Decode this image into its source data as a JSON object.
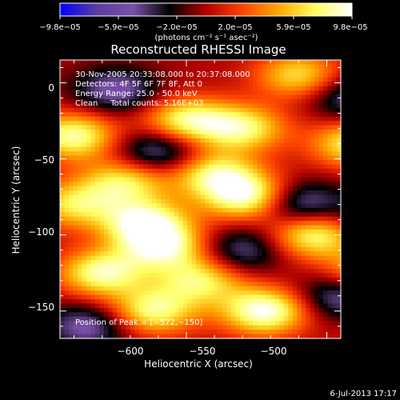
{
  "chart_data": {
    "type": "heatmap",
    "title": "Reconstructed RHESSI Image",
    "xlabel": "Heliocentric X (arcsec)",
    "ylabel": "Heliocentric Y (arcsec)",
    "xlim": [
      -645,
      -545
    ],
    "ylim": [
      -168,
      15
    ],
    "xticks": [
      -600,
      -550,
      -500
    ],
    "yticks": [
      0,
      -50,
      -100,
      -150
    ],
    "x_tick_labels": [
      "−600",
      "−550",
      "−500"
    ],
    "y_tick_labels": [
      "0",
      "−50",
      "−100",
      "−150"
    ],
    "info_lines": [
      "30-Nov-2005 20:33:08.000 to 20:37:08.000",
      "Detectors: 4F 5F 6F 7F 8F, Att 0",
      "Energy Range: 25.0 - 50.0 keV",
      "Clean     Total counts: 5.16E+03"
    ],
    "peak_label": "Position of Peak = [−572,−150]",
    "colorbar": {
      "tick_labels": [
        "−9.8e−05",
        "−5.9e−05",
        "−2.0e−05",
        "2.0e−05",
        "5.9e−05",
        "9.8e−05"
      ],
      "unit_label": "(photons cm⁻² s⁻¹ asec⁻²)",
      "vmin": -9.8e-05,
      "vmax": 9.8e-05,
      "colors": [
        "#0000ff",
        "#5a3ca0",
        "#7a50a8",
        "#000000",
        "#b00000",
        "#ff4400",
        "#ffa800",
        "#ffff60",
        "#ffffff"
      ]
    },
    "grid": false,
    "colors": {
      "background": "#000000",
      "text": "#ffffff"
    },
    "hotspots": [
      {
        "x": -615,
        "y": -92,
        "v": 9e-05
      },
      {
        "x": -608,
        "y": -108,
        "v": 8e-05
      },
      {
        "x": -578,
        "y": -75,
        "v": 9.2e-05
      },
      {
        "x": -590,
        "y": -60,
        "v": 7.5e-05
      },
      {
        "x": -630,
        "y": -125,
        "v": 8.5e-05
      },
      {
        "x": -612,
        "y": -150,
        "v": 8e-05
      },
      {
        "x": -572,
        "y": -150,
        "v": 9.8e-05
      },
      {
        "x": -640,
        "y": -35,
        "v": 8.5e-05
      },
      {
        "x": -622,
        "y": -65,
        "v": 7e-05
      },
      {
        "x": -600,
        "y": -25,
        "v": 8e-05
      },
      {
        "x": -580,
        "y": -30,
        "v": 7.5e-05
      },
      {
        "x": -540,
        "y": -40,
        "v": 7.5e-05
      },
      {
        "x": -555,
        "y": -100,
        "v": 8.2e-05
      },
      {
        "x": -535,
        "y": -125,
        "v": 7e-05
      },
      {
        "x": -515,
        "y": -15,
        "v": 9e-05
      },
      {
        "x": -505,
        "y": -60,
        "v": 6.8e-05
      },
      {
        "x": -485,
        "y": -20,
        "v": 7e-05
      },
      {
        "x": -480,
        "y": -85,
        "v": 8.5e-05
      },
      {
        "x": -470,
        "y": -110,
        "v": 7.5e-05
      },
      {
        "x": -455,
        "y": -155,
        "v": 7e-05
      },
      {
        "x": -520,
        "y": -165,
        "v": 6.5e-05
      },
      {
        "x": -560,
        "y": 5,
        "v": 6.5e-05
      },
      {
        "x": -640,
        "y": -80,
        "v": 6.5e-05
      },
      {
        "x": -595,
        "y": -130,
        "v": 7e-05
      },
      {
        "x": -560,
        "y": -80,
        "v": -6.5e-05
      },
      {
        "x": -525,
        "y": -85,
        "v": -8.5e-05
      },
      {
        "x": -505,
        "y": -110,
        "v": -7.5e-05
      },
      {
        "x": -545,
        "y": -140,
        "v": -6e-05
      },
      {
        "x": -490,
        "y": 5,
        "v": -6e-05
      },
      {
        "x": -465,
        "y": -40,
        "v": -7.5e-05
      },
      {
        "x": -460,
        "y": 0,
        "v": -6.5e-05
      },
      {
        "x": -498,
        "y": -155,
        "v": -8.5e-05
      },
      {
        "x": -625,
        "y": -5,
        "v": -5.5e-05
      },
      {
        "x": -610,
        "y": -45,
        "v": -6e-05
      },
      {
        "x": -635,
        "y": -160,
        "v": -5.5e-05
      },
      {
        "x": -580,
        "y": -110,
        "v": -5e-05
      },
      {
        "x": -540,
        "y": -10,
        "v": -5.5e-05
      },
      {
        "x": -470,
        "y": -135,
        "v": -5e-05
      }
    ]
  },
  "footer": {
    "timestamp": "6-Jul-2013 17:17"
  }
}
